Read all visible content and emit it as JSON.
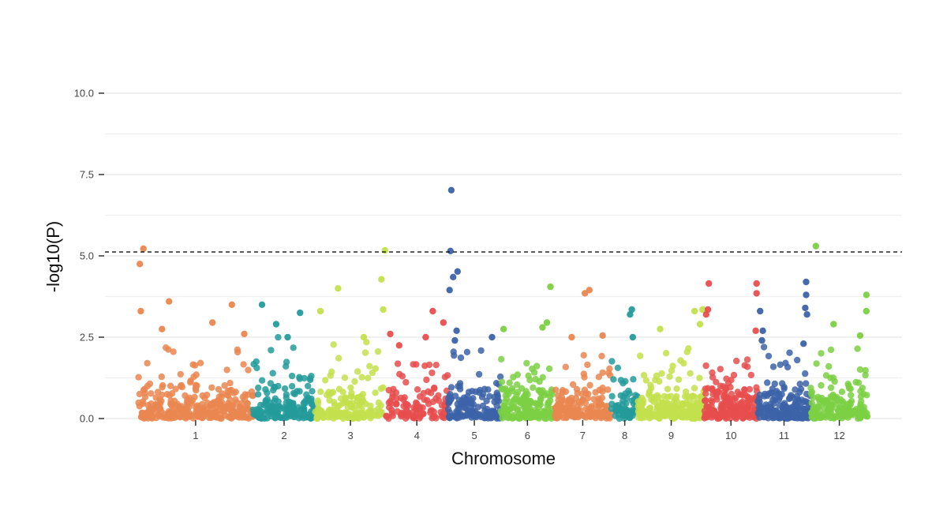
{
  "chart_data": {
    "type": "scatter",
    "subtype": "manhattan",
    "title": "",
    "xlabel": "Chromosome",
    "ylabel": "-log10(P)",
    "ylim": [
      0,
      10.8
    ],
    "yticks": [
      {
        "value": 0.0,
        "label": "0.0"
      },
      {
        "value": 2.5,
        "label": "2.5"
      },
      {
        "value": 5.0,
        "label": "5.0"
      },
      {
        "value": 7.5,
        "label": "7.5"
      },
      {
        "value": 10.0,
        "label": "10.0"
      }
    ],
    "threshold": 5.12,
    "grid": true,
    "legend": "none",
    "chromosomes": [
      {
        "name": "1",
        "start": 0.0,
        "end": 13.0,
        "color": "#EA8650",
        "density": 300,
        "peak": 2.1,
        "high_points": [
          {
            "x": 0.2,
            "y": 4.75
          },
          {
            "x": 0.6,
            "y": 5.22
          },
          {
            "x": 3.5,
            "y": 3.6
          },
          {
            "x": 0.3,
            "y": 3.3
          },
          {
            "x": 10.6,
            "y": 3.5
          },
          {
            "x": 8.4,
            "y": 2.95
          },
          {
            "x": 2.7,
            "y": 2.75
          },
          {
            "x": 12.0,
            "y": 2.6
          }
        ]
      },
      {
        "name": "2",
        "start": 13.0,
        "end": 20.0,
        "color": "#259B9B",
        "density": 160,
        "peak": 2.9,
        "high_points": [
          {
            "x": 14.0,
            "y": 3.5
          },
          {
            "x": 18.3,
            "y": 3.25
          },
          {
            "x": 15.6,
            "y": 2.9
          },
          {
            "x": 16.9,
            "y": 2.5
          }
        ]
      },
      {
        "name": "3",
        "start": 20.0,
        "end": 28.0,
        "color": "#C3E04C",
        "density": 150,
        "peak": 2.8,
        "high_points": [
          {
            "x": 20.6,
            "y": 3.3
          },
          {
            "x": 22.6,
            "y": 4.0
          },
          {
            "x": 25.5,
            "y": 2.5
          },
          {
            "x": 27.5,
            "y": 4.28
          },
          {
            "x": 27.9,
            "y": 5.17
          },
          {
            "x": 27.7,
            "y": 3.35
          }
        ]
      },
      {
        "name": "4",
        "start": 28.0,
        "end": 35.0,
        "color": "#E84E4E",
        "density": 110,
        "peak": 1.6,
        "high_points": [
          {
            "x": 28.5,
            "y": 2.6
          },
          {
            "x": 29.5,
            "y": 2.25
          },
          {
            "x": 33.3,
            "y": 3.3
          },
          {
            "x": 34.5,
            "y": 2.95
          },
          {
            "x": 32.5,
            "y": 2.5
          }
        ]
      },
      {
        "name": "5",
        "start": 35.0,
        "end": 41.0,
        "color": "#3C63A8",
        "density": 140,
        "peak": 2.0,
        "high_points": [
          {
            "x": 35.4,
            "y": 7.02
          },
          {
            "x": 35.3,
            "y": 5.15
          },
          {
            "x": 36.1,
            "y": 4.52
          },
          {
            "x": 35.6,
            "y": 4.35
          },
          {
            "x": 35.2,
            "y": 3.95
          },
          {
            "x": 36.0,
            "y": 2.7
          },
          {
            "x": 35.8,
            "y": 2.4
          },
          {
            "x": 40.0,
            "y": 2.5
          }
        ]
      },
      {
        "name": "6",
        "start": 41.0,
        "end": 47.0,
        "color": "#7BD043",
        "density": 170,
        "peak": 2.7,
        "high_points": [
          {
            "x": 46.6,
            "y": 4.05
          },
          {
            "x": 41.3,
            "y": 2.75
          },
          {
            "x": 45.7,
            "y": 2.8
          },
          {
            "x": 46.2,
            "y": 2.95
          }
        ]
      },
      {
        "name": "7",
        "start": 47.0,
        "end": 53.5,
        "color": "#EA8650",
        "density": 160,
        "peak": 1.9,
        "high_points": [
          {
            "x": 50.5,
            "y": 3.85
          },
          {
            "x": 51.0,
            "y": 3.95
          },
          {
            "x": 49.0,
            "y": 2.5
          },
          {
            "x": 52.5,
            "y": 2.55
          }
        ]
      },
      {
        "name": "8",
        "start": 53.5,
        "end": 56.5,
        "color": "#259B9B",
        "density": 60,
        "peak": 1.9,
        "high_points": [
          {
            "x": 55.8,
            "y": 3.35
          },
          {
            "x": 55.6,
            "y": 3.2
          },
          {
            "x": 55.9,
            "y": 2.5
          }
        ]
      },
      {
        "name": "9",
        "start": 56.5,
        "end": 64.0,
        "color": "#C3E04C",
        "density": 220,
        "peak": 2.1,
        "high_points": [
          {
            "x": 62.9,
            "y": 3.3
          },
          {
            "x": 63.8,
            "y": 3.35
          },
          {
            "x": 59.0,
            "y": 2.75
          },
          {
            "x": 63.5,
            "y": 2.9
          }
        ]
      },
      {
        "name": "10",
        "start": 64.0,
        "end": 70.0,
        "color": "#E84E4E",
        "density": 200,
        "peak": 2.2,
        "high_points": [
          {
            "x": 64.5,
            "y": 4.15
          },
          {
            "x": 64.4,
            "y": 3.35
          },
          {
            "x": 64.2,
            "y": 3.2
          },
          {
            "x": 69.9,
            "y": 4.15
          },
          {
            "x": 69.9,
            "y": 3.85
          },
          {
            "x": 69.8,
            "y": 2.7
          }
        ]
      },
      {
        "name": "11",
        "start": 70.0,
        "end": 76.0,
        "color": "#3C63A8",
        "density": 180,
        "peak": 2.0,
        "high_points": [
          {
            "x": 70.3,
            "y": 3.3
          },
          {
            "x": 70.6,
            "y": 2.7
          },
          {
            "x": 70.5,
            "y": 2.4
          },
          {
            "x": 75.5,
            "y": 4.2
          },
          {
            "x": 75.5,
            "y": 3.8
          },
          {
            "x": 75.4,
            "y": 3.4
          },
          {
            "x": 75.6,
            "y": 3.2
          },
          {
            "x": 75.2,
            "y": 2.3
          }
        ]
      },
      {
        "name": "12",
        "start": 76.0,
        "end": 82.5,
        "color": "#7BD043",
        "density": 170,
        "peak": 2.0,
        "high_points": [
          {
            "x": 76.6,
            "y": 5.3
          },
          {
            "x": 78.6,
            "y": 2.9
          },
          {
            "x": 82.3,
            "y": 3.8
          },
          {
            "x": 82.3,
            "y": 3.3
          },
          {
            "x": 81.6,
            "y": 2.55
          }
        ]
      }
    ]
  }
}
